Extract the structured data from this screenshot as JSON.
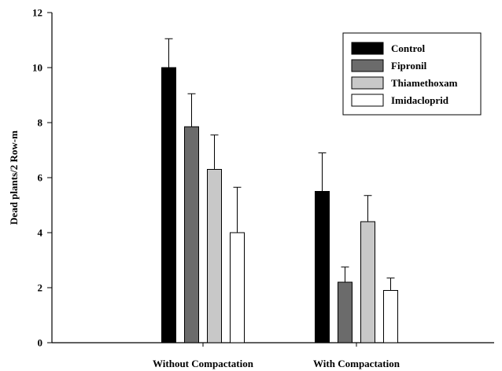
{
  "chart_data": {
    "type": "bar",
    "title": "",
    "xlabel": "",
    "ylabel": "Dead plants/2 Row-m",
    "categories": [
      "Without Compactation",
      "With Compactation"
    ],
    "series": [
      {
        "name": "Control",
        "values": [
          10.0,
          5.5
        ],
        "errors": [
          1.05,
          1.4
        ],
        "color": "#000000"
      },
      {
        "name": "Fipronil",
        "values": [
          7.85,
          2.2
        ],
        "errors": [
          1.2,
          0.55
        ],
        "color": "#6b6b6b"
      },
      {
        "name": "Thiamethoxam",
        "values": [
          6.3,
          4.4
        ],
        "errors": [
          1.25,
          0.95
        ],
        "color": "#c8c8c8"
      },
      {
        "name": "Imidacloprid",
        "values": [
          4.0,
          1.9
        ],
        "errors": [
          1.65,
          0.45
        ],
        "color": "#ffffff"
      }
    ],
    "ylim": [
      0,
      12
    ],
    "yticks": [
      "0",
      "2",
      "4",
      "6",
      "8",
      "10",
      "12"
    ],
    "grid": false,
    "legend_position": "top-right"
  }
}
